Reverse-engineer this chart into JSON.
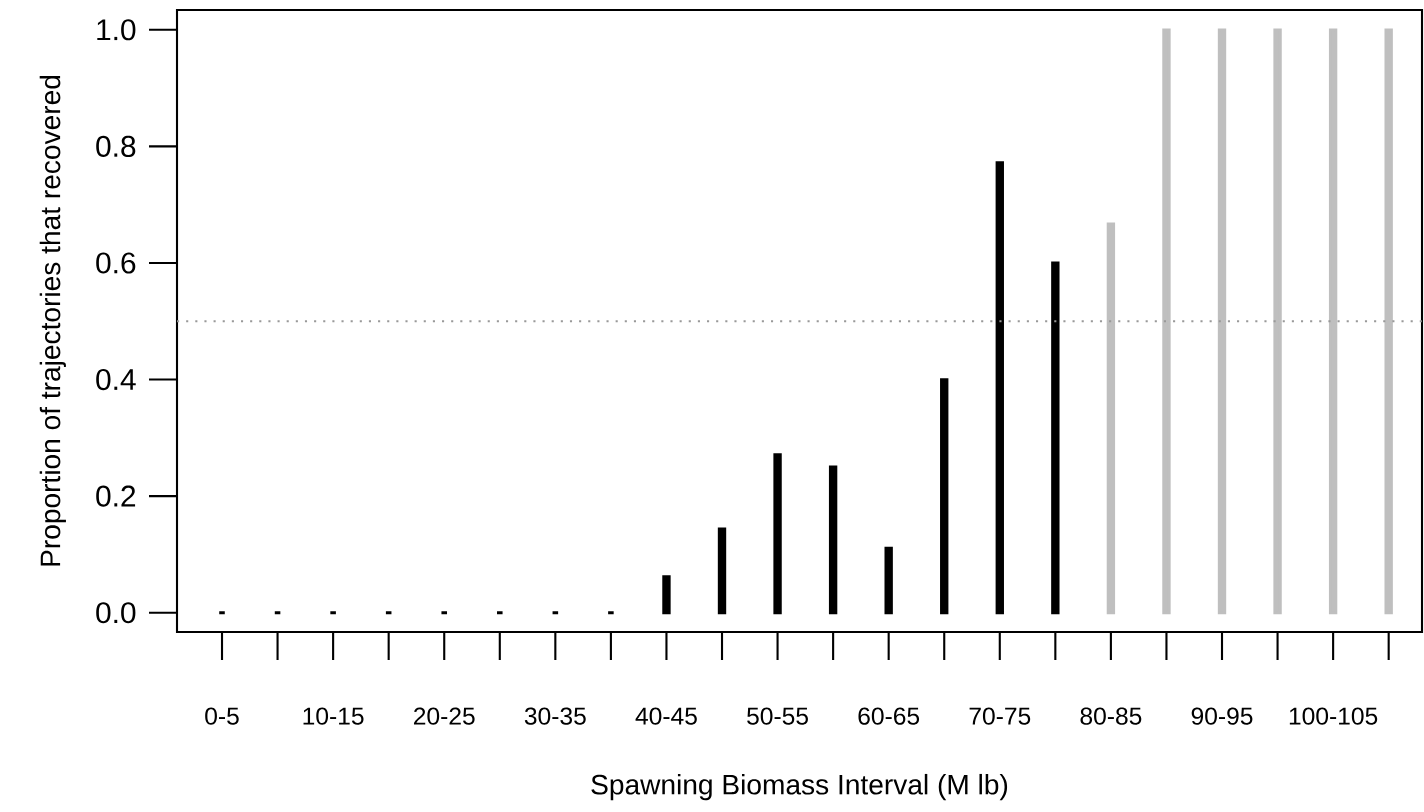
{
  "chart_data": {
    "type": "bar",
    "xlabel": "Spawning Biomass Interval (M lb)",
    "ylabel": "Proportion of trajectories that recovered",
    "categories": [
      "0-5",
      null,
      "10-15",
      null,
      "20-25",
      null,
      "30-35",
      null,
      "40-45",
      null,
      "50-55",
      null,
      "60-65",
      null,
      "70-75",
      null,
      "80-85",
      null,
      "90-95",
      null,
      "100-105",
      null
    ],
    "values": [
      0,
      0,
      0,
      0,
      0,
      0,
      0,
      0,
      0.062,
      0.144,
      0.271,
      0.25,
      0.111,
      0.4,
      0.772,
      0.6,
      0.667,
      1.0,
      1.0,
      1.0,
      1.0,
      1.0
    ],
    "colors": [
      "#000000",
      "#000000",
      "#000000",
      "#000000",
      "#000000",
      "#000000",
      "#000000",
      "#000000",
      "#000000",
      "#000000",
      "#000000",
      "#000000",
      "#000000",
      "#000000",
      "#000000",
      "#000000",
      "#bfbfbf",
      "#bfbfbf",
      "#bfbfbf",
      "#bfbfbf",
      "#bfbfbf",
      "#bfbfbf"
    ],
    "ylim": [
      -0.033,
      1.034
    ],
    "yticks": [
      {
        "value": 0,
        "label": "0.0"
      },
      {
        "value": 0.2,
        "label": "0.2"
      },
      {
        "value": 0.4,
        "label": "0.4"
      },
      {
        "value": 0.6,
        "label": "0.6"
      },
      {
        "value": 0.8,
        "label": "0.8"
      },
      {
        "value": 1,
        "label": "1.0"
      }
    ],
    "ref_lines": [
      {
        "axis": "y",
        "value": 0.5,
        "color": "#999999",
        "line_style": "dotted"
      }
    ],
    "grid": false
  }
}
